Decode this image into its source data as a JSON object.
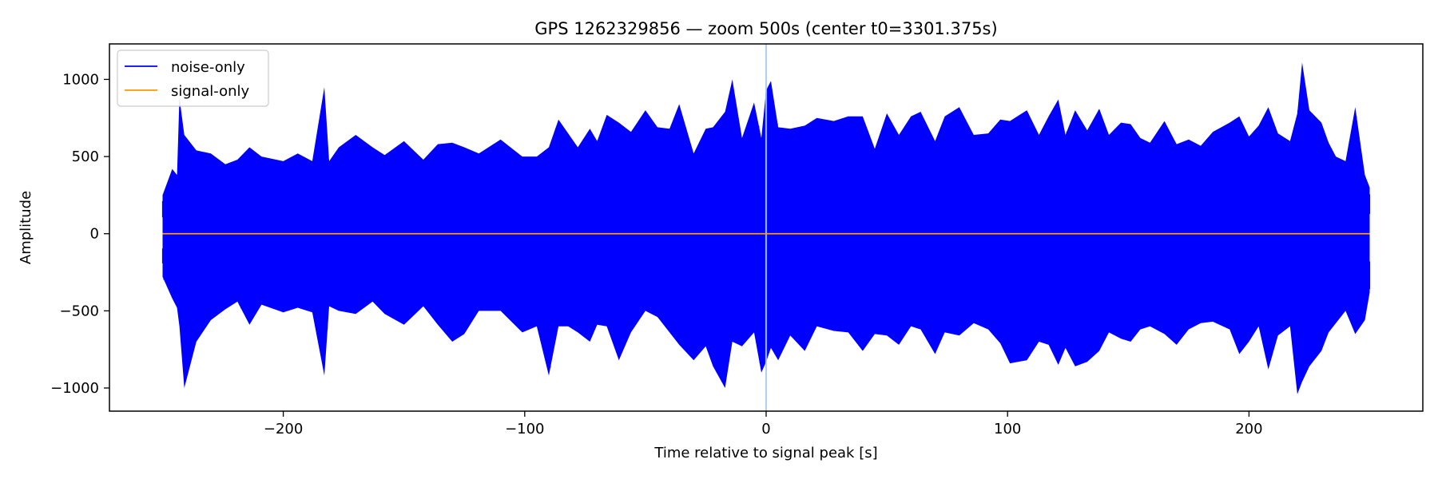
{
  "chart_data": {
    "type": "line",
    "title": "GPS 1262329856 — zoom 500s (center t0=3301.375s)",
    "xlabel": "Time relative to signal peak [s]",
    "ylabel": "Amplitude",
    "xlim": [
      -272,
      272
    ],
    "ylim": [
      -1150,
      1230
    ],
    "xticks": [
      -200,
      -100,
      0,
      100,
      200
    ],
    "xtick_labels": [
      "−200",
      "−100",
      "0",
      "100",
      "200"
    ],
    "yticks": [
      1000,
      500,
      0,
      -500,
      -1000
    ],
    "ytick_labels": [
      "1000",
      "500",
      "0",
      "−500",
      "−1000"
    ],
    "legend_position": "upper-left",
    "vline": {
      "x": 0,
      "color": "#a6c8e6"
    },
    "series": [
      {
        "name": "noise-only",
        "color": "#0000ff",
        "x_range": [
          -250,
          250
        ],
        "envelope": {
          "x": [
            -250,
            -246,
            -244,
            -243,
            -241,
            -236,
            -230,
            -224,
            -219,
            -214,
            -209,
            -200,
            -194,
            -188,
            -183,
            -181,
            -177,
            -170,
            -163,
            -158,
            -150,
            -142,
            -136,
            -130,
            -125,
            -119,
            -110,
            -101,
            -95,
            -90,
            -86,
            -82,
            -78,
            -73,
            -70,
            -66,
            -61,
            -56,
            -50,
            -45,
            -40,
            -36,
            -30,
            -25,
            -22,
            -17,
            -14,
            -10,
            -5,
            -2,
            0,
            2,
            5,
            10,
            16,
            21,
            28,
            34,
            40,
            45,
            50,
            55,
            60,
            64,
            70,
            74,
            80,
            86,
            92,
            97,
            101,
            108,
            113,
            117,
            121,
            124,
            128,
            133,
            138,
            142,
            147,
            151,
            155,
            159,
            165,
            170,
            175,
            180,
            185,
            192,
            196,
            200,
            204,
            208,
            212,
            217,
            220,
            222,
            225,
            230,
            233,
            236,
            240,
            244,
            248,
            250
          ],
          "max": [
            250,
            420,
            380,
            880,
            640,
            540,
            520,
            450,
            480,
            560,
            500,
            470,
            520,
            470,
            950,
            470,
            560,
            640,
            560,
            510,
            600,
            480,
            580,
            590,
            560,
            520,
            610,
            500,
            500,
            560,
            740,
            650,
            560,
            680,
            600,
            770,
            720,
            660,
            800,
            690,
            680,
            840,
            520,
            680,
            690,
            790,
            1000,
            620,
            850,
            620,
            930,
            990,
            690,
            680,
            700,
            750,
            730,
            760,
            760,
            550,
            780,
            640,
            760,
            790,
            600,
            760,
            820,
            640,
            650,
            740,
            730,
            800,
            640,
            760,
            870,
            640,
            800,
            670,
            810,
            640,
            720,
            710,
            620,
            590,
            730,
            580,
            610,
            570,
            660,
            720,
            760,
            630,
            700,
            820,
            650,
            600,
            780,
            1110,
            800,
            720,
            590,
            500,
            470,
            820,
            380,
            300
          ],
          "min": [
            -280,
            -420,
            -480,
            -600,
            -1000,
            -700,
            -560,
            -490,
            -440,
            -590,
            -460,
            -510,
            -480,
            -510,
            -920,
            -470,
            -500,
            -520,
            -440,
            -520,
            -590,
            -470,
            -590,
            -700,
            -650,
            -500,
            -500,
            -640,
            -600,
            -920,
            -600,
            -600,
            -640,
            -700,
            -590,
            -600,
            -820,
            -640,
            -500,
            -540,
            -640,
            -720,
            -820,
            -730,
            -860,
            -1000,
            -700,
            -730,
            -640,
            -900,
            -830,
            -740,
            -820,
            -660,
            -760,
            -600,
            -630,
            -640,
            -760,
            -650,
            -660,
            -720,
            -600,
            -620,
            -780,
            -640,
            -660,
            -580,
            -620,
            -710,
            -840,
            -820,
            -700,
            -720,
            -850,
            -740,
            -860,
            -830,
            -760,
            -640,
            -680,
            -700,
            -620,
            -600,
            -650,
            -720,
            -620,
            -580,
            -570,
            -620,
            -780,
            -700,
            -600,
            -880,
            -660,
            -600,
            -1040,
            -960,
            -860,
            -760,
            -640,
            -580,
            -500,
            -650,
            -560,
            -380
          ]
        }
      },
      {
        "name": "signal-only",
        "color": "#ff9900",
        "x": [
          -250,
          250
        ],
        "y": [
          0,
          0
        ]
      }
    ]
  }
}
